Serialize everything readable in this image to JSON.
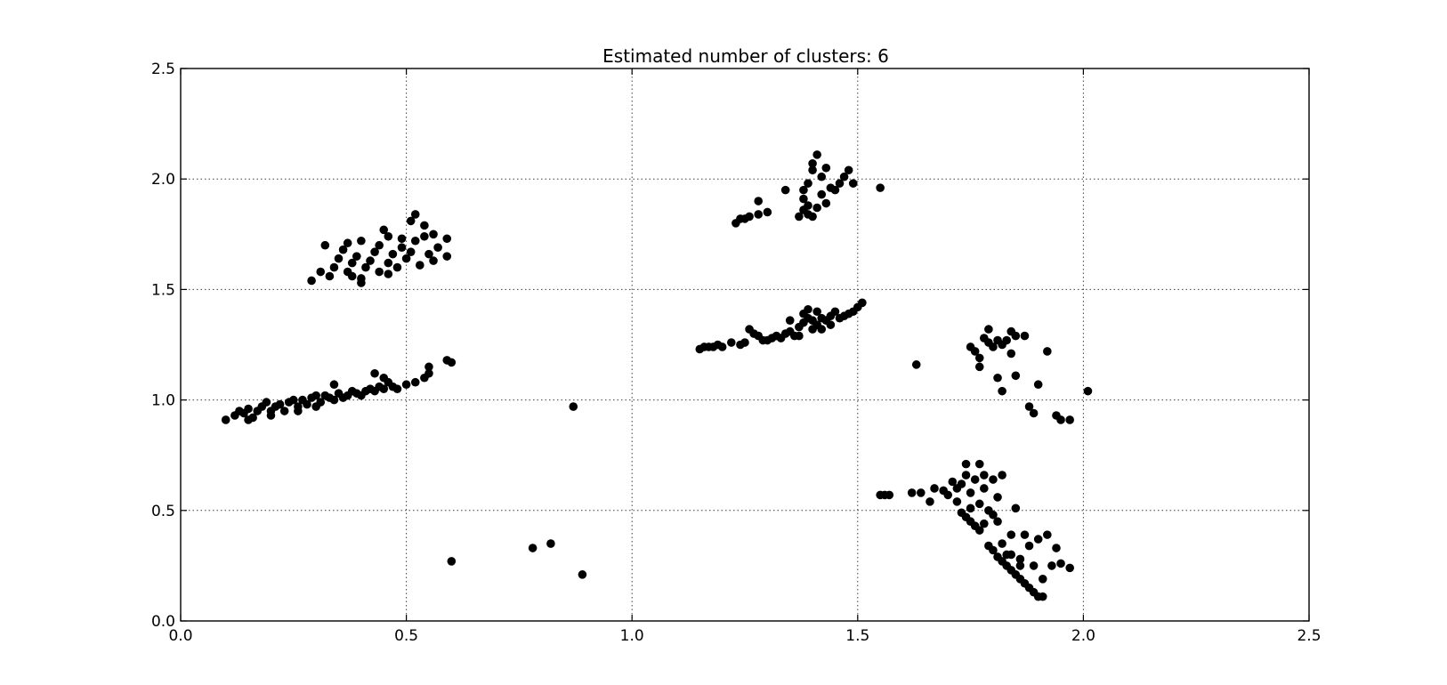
{
  "chart_data": {
    "type": "scatter",
    "title": "Estimated number of clusters: 6",
    "xlabel": "",
    "ylabel": "",
    "xlim": [
      0.0,
      2.5
    ],
    "ylim": [
      0.0,
      2.5
    ],
    "xticks": [
      "0.0",
      "0.5",
      "1.0",
      "1.5",
      "2.0",
      "2.5"
    ],
    "yticks": [
      "0.0",
      "0.5",
      "1.0",
      "1.5",
      "2.0",
      "2.5"
    ],
    "grid": true,
    "marker_color": "#000000",
    "points": [
      [
        0.1,
        0.91
      ],
      [
        0.12,
        0.93
      ],
      [
        0.13,
        0.95
      ],
      [
        0.14,
        0.94
      ],
      [
        0.15,
        0.96
      ],
      [
        0.16,
        0.92
      ],
      [
        0.17,
        0.95
      ],
      [
        0.18,
        0.97
      ],
      [
        0.19,
        0.99
      ],
      [
        0.2,
        0.93
      ],
      [
        0.21,
        0.97
      ],
      [
        0.22,
        0.98
      ],
      [
        0.23,
        0.95
      ],
      [
        0.24,
        0.99
      ],
      [
        0.25,
        1.0
      ],
      [
        0.26,
        0.97
      ],
      [
        0.27,
        1.0
      ],
      [
        0.28,
        0.98
      ],
      [
        0.29,
        1.01
      ],
      [
        0.3,
        1.02
      ],
      [
        0.31,
        0.99
      ],
      [
        0.32,
        1.02
      ],
      [
        0.33,
        1.01
      ],
      [
        0.34,
        1.0
      ],
      [
        0.35,
        1.03
      ],
      [
        0.36,
        1.01
      ],
      [
        0.37,
        1.02
      ],
      [
        0.38,
        1.04
      ],
      [
        0.39,
        1.03
      ],
      [
        0.4,
        1.02
      ],
      [
        0.41,
        1.04
      ],
      [
        0.42,
        1.05
      ],
      [
        0.43,
        1.04
      ],
      [
        0.44,
        1.06
      ],
      [
        0.45,
        1.05
      ],
      [
        0.46,
        1.08
      ],
      [
        0.47,
        1.06
      ],
      [
        0.48,
        1.05
      ],
      [
        0.5,
        1.07
      ],
      [
        0.52,
        1.08
      ],
      [
        0.54,
        1.1
      ],
      [
        0.43,
        1.12
      ],
      [
        0.45,
        1.1
      ],
      [
        0.55,
        1.15
      ],
      [
        0.59,
        1.18
      ],
      [
        0.6,
        1.17
      ],
      [
        0.55,
        1.12
      ],
      [
        0.34,
        1.07
      ],
      [
        0.15,
        0.91
      ],
      [
        0.2,
        0.95
      ],
      [
        0.26,
        0.95
      ],
      [
        0.3,
        0.97
      ],
      [
        0.29,
        1.54
      ],
      [
        0.31,
        1.58
      ],
      [
        0.32,
        1.7
      ],
      [
        0.33,
        1.56
      ],
      [
        0.34,
        1.6
      ],
      [
        0.35,
        1.64
      ],
      [
        0.36,
        1.68
      ],
      [
        0.37,
        1.58
      ],
      [
        0.37,
        1.71
      ],
      [
        0.38,
        1.56
      ],
      [
        0.38,
        1.62
      ],
      [
        0.39,
        1.65
      ],
      [
        0.4,
        1.55
      ],
      [
        0.4,
        1.72
      ],
      [
        0.41,
        1.6
      ],
      [
        0.42,
        1.63
      ],
      [
        0.43,
        1.67
      ],
      [
        0.44,
        1.7
      ],
      [
        0.44,
        1.58
      ],
      [
        0.45,
        1.77
      ],
      [
        0.46,
        1.74
      ],
      [
        0.46,
        1.62
      ],
      [
        0.47,
        1.66
      ],
      [
        0.48,
        1.6
      ],
      [
        0.49,
        1.69
      ],
      [
        0.49,
        1.73
      ],
      [
        0.5,
        1.64
      ],
      [
        0.51,
        1.67
      ],
      [
        0.51,
        1.81
      ],
      [
        0.52,
        1.84
      ],
      [
        0.52,
        1.72
      ],
      [
        0.53,
        1.61
      ],
      [
        0.54,
        1.74
      ],
      [
        0.54,
        1.79
      ],
      [
        0.55,
        1.66
      ],
      [
        0.56,
        1.63
      ],
      [
        0.56,
        1.75
      ],
      [
        0.57,
        1.69
      ],
      [
        0.59,
        1.73
      ],
      [
        0.59,
        1.65
      ],
      [
        0.4,
        1.53
      ],
      [
        0.46,
        1.57
      ],
      [
        0.6,
        0.27
      ],
      [
        0.78,
        0.33
      ],
      [
        0.82,
        0.35
      ],
      [
        0.87,
        0.97
      ],
      [
        0.89,
        0.21
      ],
      [
        1.23,
        1.8
      ],
      [
        1.24,
        1.82
      ],
      [
        1.25,
        1.82
      ],
      [
        1.26,
        1.83
      ],
      [
        1.28,
        1.84
      ],
      [
        1.28,
        1.9
      ],
      [
        1.3,
        1.85
      ],
      [
        1.34,
        1.95
      ],
      [
        1.37,
        1.83
      ],
      [
        1.38,
        1.86
      ],
      [
        1.38,
        1.91
      ],
      [
        1.39,
        1.84
      ],
      [
        1.39,
        1.88
      ],
      [
        1.39,
        1.98
      ],
      [
        1.4,
        2.04
      ],
      [
        1.4,
        1.83
      ],
      [
        1.41,
        2.11
      ],
      [
        1.41,
        1.87
      ],
      [
        1.42,
        1.93
      ],
      [
        1.42,
        2.01
      ],
      [
        1.43,
        2.05
      ],
      [
        1.43,
        1.89
      ],
      [
        1.44,
        1.96
      ],
      [
        1.45,
        1.95
      ],
      [
        1.46,
        1.98
      ],
      [
        1.47,
        2.01
      ],
      [
        1.48,
        2.04
      ],
      [
        1.49,
        1.98
      ],
      [
        1.55,
        1.96
      ],
      [
        1.4,
        2.07
      ],
      [
        1.38,
        1.95
      ],
      [
        1.15,
        1.23
      ],
      [
        1.16,
        1.24
      ],
      [
        1.17,
        1.24
      ],
      [
        1.18,
        1.24
      ],
      [
        1.19,
        1.25
      ],
      [
        1.2,
        1.24
      ],
      [
        1.22,
        1.26
      ],
      [
        1.24,
        1.25
      ],
      [
        1.25,
        1.26
      ],
      [
        1.26,
        1.32
      ],
      [
        1.27,
        1.3
      ],
      [
        1.28,
        1.29
      ],
      [
        1.29,
        1.27
      ],
      [
        1.3,
        1.27
      ],
      [
        1.31,
        1.28
      ],
      [
        1.32,
        1.29
      ],
      [
        1.33,
        1.28
      ],
      [
        1.34,
        1.3
      ],
      [
        1.35,
        1.31
      ],
      [
        1.35,
        1.36
      ],
      [
        1.36,
        1.29
      ],
      [
        1.37,
        1.33
      ],
      [
        1.38,
        1.35
      ],
      [
        1.38,
        1.39
      ],
      [
        1.39,
        1.37
      ],
      [
        1.39,
        1.41
      ],
      [
        1.4,
        1.32
      ],
      [
        1.4,
        1.36
      ],
      [
        1.41,
        1.34
      ],
      [
        1.41,
        1.4
      ],
      [
        1.42,
        1.37
      ],
      [
        1.43,
        1.36
      ],
      [
        1.44,
        1.38
      ],
      [
        1.44,
        1.34
      ],
      [
        1.45,
        1.4
      ],
      [
        1.46,
        1.37
      ],
      [
        1.47,
        1.38
      ],
      [
        1.48,
        1.39
      ],
      [
        1.49,
        1.4
      ],
      [
        1.5,
        1.42
      ],
      [
        1.51,
        1.44
      ],
      [
        1.42,
        1.32
      ],
      [
        1.37,
        1.29
      ],
      [
        1.63,
        1.16
      ],
      [
        1.75,
        1.24
      ],
      [
        1.76,
        1.22
      ],
      [
        1.77,
        1.19
      ],
      [
        1.77,
        1.15
      ],
      [
        1.78,
        1.28
      ],
      [
        1.79,
        1.26
      ],
      [
        1.79,
        1.32
      ],
      [
        1.8,
        1.24
      ],
      [
        1.81,
        1.27
      ],
      [
        1.81,
        1.1
      ],
      [
        1.82,
        1.25
      ],
      [
        1.82,
        1.04
      ],
      [
        1.83,
        1.27
      ],
      [
        1.84,
        1.21
      ],
      [
        1.84,
        1.31
      ],
      [
        1.85,
        1.29
      ],
      [
        1.85,
        1.11
      ],
      [
        1.87,
        1.29
      ],
      [
        1.88,
        0.97
      ],
      [
        1.89,
        0.94
      ],
      [
        1.9,
        1.07
      ],
      [
        1.92,
        1.22
      ],
      [
        1.94,
        0.93
      ],
      [
        1.95,
        0.91
      ],
      [
        1.97,
        0.91
      ],
      [
        2.01,
        1.04
      ],
      [
        1.55,
        0.57
      ],
      [
        1.56,
        0.57
      ],
      [
        1.57,
        0.57
      ],
      [
        1.62,
        0.58
      ],
      [
        1.64,
        0.58
      ],
      [
        1.66,
        0.54
      ],
      [
        1.67,
        0.6
      ],
      [
        1.69,
        0.59
      ],
      [
        1.7,
        0.57
      ],
      [
        1.71,
        0.63
      ],
      [
        1.72,
        0.54
      ],
      [
        1.72,
        0.6
      ],
      [
        1.73,
        0.49
      ],
      [
        1.73,
        0.62
      ],
      [
        1.74,
        0.47
      ],
      [
        1.74,
        0.66
      ],
      [
        1.74,
        0.71
      ],
      [
        1.75,
        0.45
      ],
      [
        1.75,
        0.51
      ],
      [
        1.75,
        0.58
      ],
      [
        1.76,
        0.43
      ],
      [
        1.76,
        0.64
      ],
      [
        1.77,
        0.41
      ],
      [
        1.77,
        0.53
      ],
      [
        1.77,
        0.71
      ],
      [
        1.78,
        0.44
      ],
      [
        1.78,
        0.6
      ],
      [
        1.78,
        0.66
      ],
      [
        1.79,
        0.34
      ],
      [
        1.79,
        0.5
      ],
      [
        1.8,
        0.32
      ],
      [
        1.8,
        0.48
      ],
      [
        1.8,
        0.64
      ],
      [
        1.81,
        0.29
      ],
      [
        1.81,
        0.56
      ],
      [
        1.81,
        0.45
      ],
      [
        1.82,
        0.27
      ],
      [
        1.82,
        0.35
      ],
      [
        1.82,
        0.66
      ],
      [
        1.83,
        0.25
      ],
      [
        1.83,
        0.3
      ],
      [
        1.84,
        0.23
      ],
      [
        1.84,
        0.39
      ],
      [
        1.85,
        0.21
      ],
      [
        1.85,
        0.51
      ],
      [
        1.86,
        0.19
      ],
      [
        1.86,
        0.28
      ],
      [
        1.87,
        0.17
      ],
      [
        1.87,
        0.39
      ],
      [
        1.88,
        0.15
      ],
      [
        1.88,
        0.34
      ],
      [
        1.89,
        0.13
      ],
      [
        1.89,
        0.25
      ],
      [
        1.9,
        0.11
      ],
      [
        1.9,
        0.37
      ],
      [
        1.91,
        0.11
      ],
      [
        1.91,
        0.19
      ],
      [
        1.92,
        0.39
      ],
      [
        1.93,
        0.25
      ],
      [
        1.94,
        0.33
      ],
      [
        1.95,
        0.26
      ],
      [
        1.97,
        0.24
      ],
      [
        1.86,
        0.25
      ],
      [
        1.84,
        0.3
      ]
    ]
  }
}
